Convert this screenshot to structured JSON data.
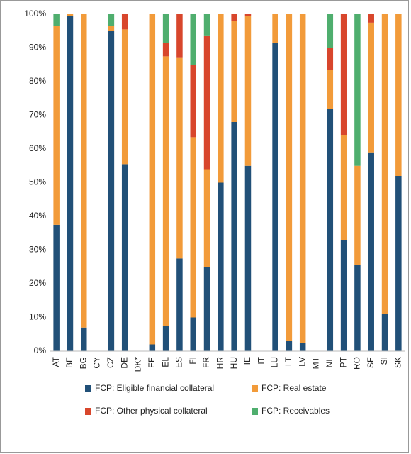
{
  "chart_data": {
    "type": "stacked_bar",
    "categories": [
      "AT",
      "BE",
      "BG",
      "CY",
      "CZ",
      "DE",
      "DK*",
      "EE",
      "EL",
      "ES",
      "FI",
      "FR",
      "HR",
      "HU",
      "IE",
      "IT",
      "LU",
      "LT",
      "LV",
      "MT",
      "NL",
      "PT",
      "RO",
      "SE",
      "SI",
      "SK"
    ],
    "series": [
      {
        "name": "FCP: Eligible financial collateral",
        "color": "#215078",
        "values": [
          37.5,
          99.5,
          7,
          0,
          95,
          55.5,
          0,
          2,
          7.5,
          27.5,
          10,
          25,
          50,
          68,
          55,
          0,
          91.5,
          3,
          2.5,
          0,
          72,
          33,
          25.5,
          59,
          11,
          52
        ]
      },
      {
        "name": "FCP: Real estate",
        "color": "#f29b3a",
        "values": [
          59,
          0.5,
          93,
          0,
          1.5,
          40,
          0,
          98,
          80,
          59.5,
          53.5,
          29,
          50,
          30,
          44.5,
          0,
          8.5,
          97,
          97.5,
          0,
          11.5,
          31,
          29.5,
          38.5,
          89,
          48
        ]
      },
      {
        "name": "FCP: Other physical collateral",
        "color": "#d8462c",
        "values": [
          0,
          0,
          0,
          0,
          0,
          4.5,
          0,
          0,
          4,
          13,
          21.5,
          39.5,
          0,
          2,
          0.5,
          0,
          0,
          0,
          0,
          0,
          6.5,
          36,
          0,
          2.5,
          0,
          0
        ]
      },
      {
        "name": "FCP: Receivables",
        "color": "#4fae6e",
        "values": [
          3.5,
          0,
          0,
          0,
          3.5,
          0,
          0,
          0,
          8.5,
          0,
          15,
          6.5,
          0,
          0,
          0,
          0,
          0,
          0,
          0,
          0,
          10,
          0,
          45,
          0,
          0,
          0
        ]
      }
    ],
    "ylim": [
      0,
      100
    ],
    "yticks": [
      {
        "value": 0,
        "label": "0%"
      },
      {
        "value": 10,
        "label": "10%"
      },
      {
        "value": 20,
        "label": "20%"
      },
      {
        "value": 30,
        "label": "30%"
      },
      {
        "value": 40,
        "label": "40%"
      },
      {
        "value": 50,
        "label": "50%"
      },
      {
        "value": 60,
        "label": "60%"
      },
      {
        "value": 70,
        "label": "70%"
      },
      {
        "value": 80,
        "label": "80%"
      },
      {
        "value": 90,
        "label": "90%"
      },
      {
        "value": 100,
        "label": "100%"
      }
    ]
  }
}
